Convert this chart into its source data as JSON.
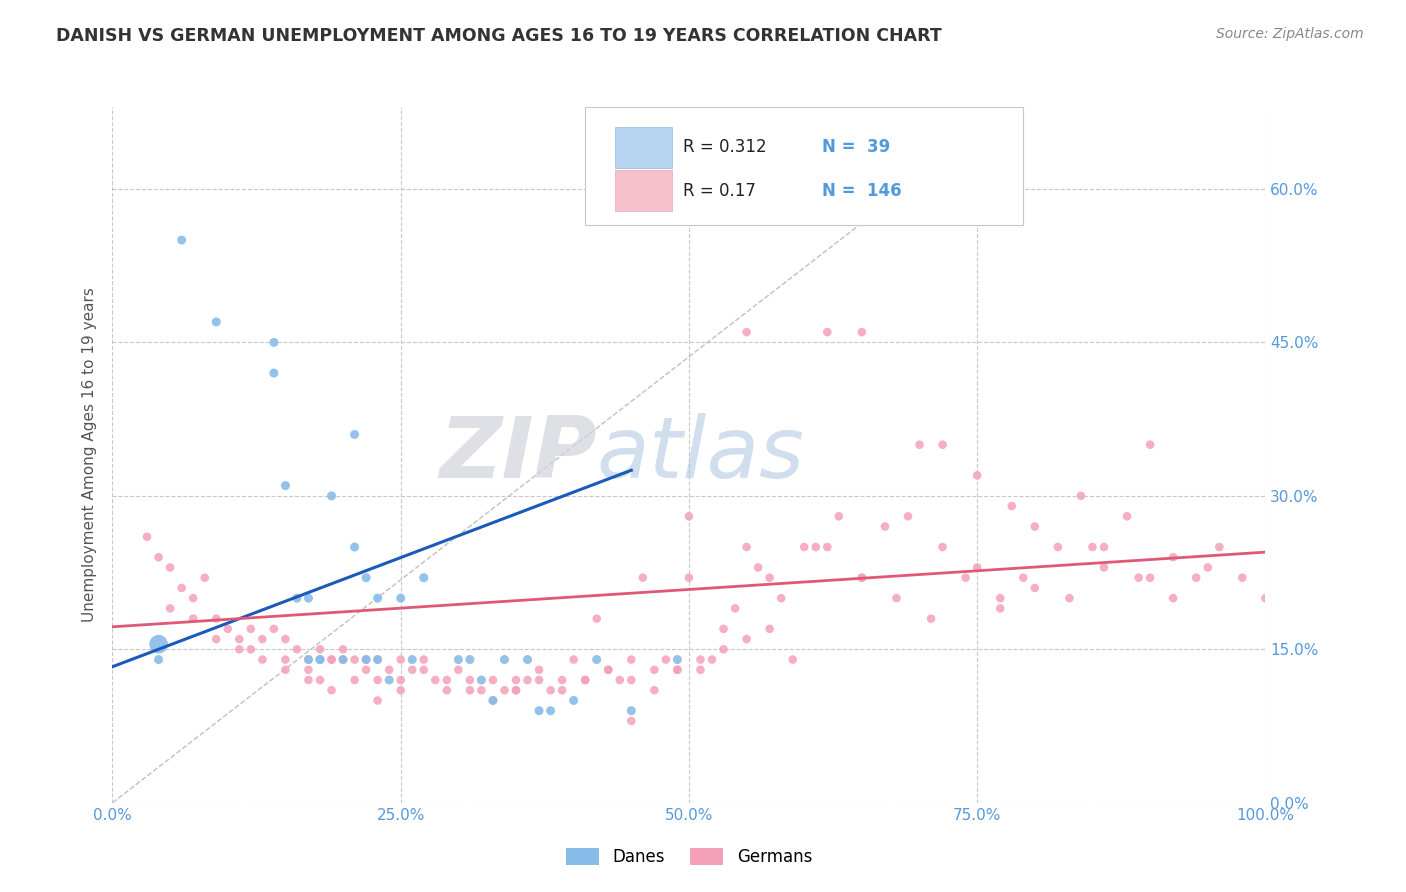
{
  "title": "DANISH VS GERMAN UNEMPLOYMENT AMONG AGES 16 TO 19 YEARS CORRELATION CHART",
  "source": "Source: ZipAtlas.com",
  "ylabel": "Unemployment Among Ages 16 to 19 years",
  "xlim": [
    0.0,
    1.0
  ],
  "ylim": [
    0.0,
    0.68
  ],
  "yticks": [
    0.0,
    0.15,
    0.3,
    0.45,
    0.6
  ],
  "xticks": [
    0.0,
    0.25,
    0.5,
    0.75,
    1.0
  ],
  "danish_R": 0.312,
  "danish_N": 39,
  "german_R": 0.17,
  "german_N": 146,
  "danish_color": "#88bce8",
  "german_color": "#f4a0b8",
  "danish_line_color": "#1a5aba",
  "german_line_color": "#e05878",
  "diag_line_color": "#c0c0c0",
  "legend_blue_fill": "#b8d4f0",
  "legend_pink_fill": "#f8c0cc",
  "background_color": "#ffffff",
  "grid_color": "#c8c8c8",
  "title_color": "#333333",
  "axis_label_color": "#5599dd",
  "watermark_zip_color": "#d0d4dc",
  "watermark_atlas_color": "#aac4e0",
  "danish_line_x0": 0.0,
  "danish_line_y0": 0.133,
  "danish_line_x1": 0.45,
  "danish_line_y1": 0.325,
  "german_line_x0": 0.0,
  "german_line_y0": 0.172,
  "german_line_x1": 1.0,
  "german_line_y1": 0.245,
  "diag_line_x0": 0.0,
  "diag_line_y0": 0.0,
  "diag_line_x1": 0.78,
  "diag_line_y1": 0.68,
  "danish_scatter_x": [
    0.04,
    0.06,
    0.09,
    0.14,
    0.14,
    0.15,
    0.16,
    0.17,
    0.17,
    0.18,
    0.18,
    0.19,
    0.2,
    0.21,
    0.21,
    0.22,
    0.22,
    0.23,
    0.23,
    0.24,
    0.25,
    0.26,
    0.27,
    0.3,
    0.31,
    0.32,
    0.33,
    0.34,
    0.36,
    0.37,
    0.38,
    0.4,
    0.42,
    0.45,
    0.49
  ],
  "danish_scatter_y": [
    0.14,
    0.55,
    0.47,
    0.45,
    0.42,
    0.31,
    0.2,
    0.14,
    0.2,
    0.14,
    0.14,
    0.3,
    0.14,
    0.25,
    0.36,
    0.14,
    0.22,
    0.2,
    0.14,
    0.12,
    0.2,
    0.14,
    0.22,
    0.14,
    0.14,
    0.12,
    0.1,
    0.14,
    0.14,
    0.09,
    0.09,
    0.1,
    0.14,
    0.09,
    0.14
  ],
  "danish_scatter_big": [
    0.04
  ],
  "danish_scatter_big_y": [
    0.155
  ],
  "german_scatter_x": [
    0.03,
    0.04,
    0.05,
    0.06,
    0.07,
    0.08,
    0.09,
    0.1,
    0.11,
    0.12,
    0.12,
    0.13,
    0.14,
    0.15,
    0.15,
    0.16,
    0.17,
    0.17,
    0.18,
    0.18,
    0.19,
    0.19,
    0.2,
    0.2,
    0.21,
    0.22,
    0.22,
    0.23,
    0.23,
    0.24,
    0.25,
    0.25,
    0.26,
    0.27,
    0.28,
    0.29,
    0.3,
    0.31,
    0.32,
    0.33,
    0.34,
    0.35,
    0.35,
    0.36,
    0.37,
    0.38,
    0.39,
    0.4,
    0.41,
    0.42,
    0.43,
    0.44,
    0.45,
    0.46,
    0.47,
    0.48,
    0.49,
    0.5,
    0.51,
    0.52,
    0.53,
    0.54,
    0.55,
    0.56,
    0.57,
    0.58,
    0.6,
    0.61,
    0.63,
    0.65,
    0.67,
    0.69,
    0.7,
    0.72,
    0.75,
    0.77,
    0.79,
    0.8,
    0.82,
    0.84,
    0.86,
    0.88,
    0.9,
    0.92,
    0.94,
    0.96,
    0.98,
    1.0,
    0.05,
    0.07,
    0.09,
    0.11,
    0.13,
    0.15,
    0.17,
    0.19,
    0.21,
    0.23,
    0.25,
    0.27,
    0.29,
    0.31,
    0.33,
    0.35,
    0.37,
    0.39,
    0.41,
    0.43,
    0.45,
    0.47,
    0.49,
    0.51,
    0.53,
    0.55,
    0.57,
    0.59,
    0.62,
    0.65,
    0.68,
    0.71,
    0.74,
    0.77,
    0.8,
    0.83,
    0.86,
    0.89,
    0.92,
    0.95,
    0.62,
    0.72,
    0.78,
    0.55,
    0.65,
    0.75,
    0.85,
    0.9,
    0.5,
    0.45
  ],
  "german_scatter_y": [
    0.26,
    0.24,
    0.23,
    0.21,
    0.2,
    0.22,
    0.18,
    0.17,
    0.16,
    0.17,
    0.15,
    0.16,
    0.17,
    0.16,
    0.14,
    0.15,
    0.14,
    0.13,
    0.15,
    0.12,
    0.14,
    0.14,
    0.15,
    0.14,
    0.14,
    0.13,
    0.14,
    0.14,
    0.12,
    0.13,
    0.14,
    0.12,
    0.13,
    0.14,
    0.12,
    0.11,
    0.13,
    0.12,
    0.11,
    0.12,
    0.11,
    0.12,
    0.11,
    0.12,
    0.13,
    0.11,
    0.12,
    0.14,
    0.12,
    0.18,
    0.13,
    0.12,
    0.14,
    0.22,
    0.13,
    0.14,
    0.13,
    0.22,
    0.13,
    0.14,
    0.17,
    0.19,
    0.25,
    0.23,
    0.22,
    0.2,
    0.25,
    0.25,
    0.28,
    0.22,
    0.27,
    0.28,
    0.35,
    0.25,
    0.23,
    0.2,
    0.22,
    0.27,
    0.25,
    0.3,
    0.25,
    0.28,
    0.22,
    0.2,
    0.22,
    0.25,
    0.22,
    0.2,
    0.19,
    0.18,
    0.16,
    0.15,
    0.14,
    0.13,
    0.12,
    0.11,
    0.12,
    0.1,
    0.11,
    0.13,
    0.12,
    0.11,
    0.1,
    0.11,
    0.12,
    0.11,
    0.12,
    0.13,
    0.12,
    0.11,
    0.13,
    0.14,
    0.15,
    0.16,
    0.17,
    0.14,
    0.25,
    0.22,
    0.2,
    0.18,
    0.22,
    0.19,
    0.21,
    0.2,
    0.23,
    0.22,
    0.24,
    0.23,
    0.46,
    0.35,
    0.29,
    0.46,
    0.46,
    0.32,
    0.25,
    0.35,
    0.28,
    0.08
  ]
}
